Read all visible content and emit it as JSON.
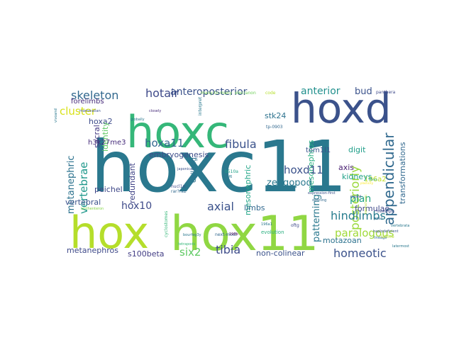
{
  "words": [
    {
      "text": "hoxc11",
      "color": "#2a788e"
    },
    {
      "text": "hoxc",
      "color": "#35b779"
    },
    {
      "text": "hoxd",
      "color": "#3b528b"
    },
    {
      "text": "hox",
      "color": "#b5de2b"
    },
    {
      "text": "hox11",
      "color": "#90d743"
    },
    {
      "text": "appendicular",
      "color": "#30698e"
    },
    {
      "text": "posteriorly",
      "color": "#9bd93c"
    },
    {
      "text": "skeleton",
      "color": "#31688e"
    },
    {
      "text": "hotair",
      "color": "#3e4989"
    },
    {
      "text": "anteroposterior",
      "color": "#3b528b"
    },
    {
      "text": "anterior",
      "color": "#21908d"
    },
    {
      "text": "bud",
      "color": "#3b528b"
    },
    {
      "text": "cluster",
      "color": "#d8e219"
    },
    {
      "text": "forelimbs",
      "color": "#472c7a"
    },
    {
      "text": "metanephric",
      "color": "#2c728e"
    },
    {
      "text": "vertebrae",
      "color": "#1f988b"
    },
    {
      "text": "hoxa2",
      "color": "#3e4c8a"
    },
    {
      "text": "sacral",
      "color": "#443983"
    },
    {
      "text": "identity",
      "color": "#5ec962"
    },
    {
      "text": "h3k27me3",
      "color": "#472d7b"
    },
    {
      "text": "hoxa11",
      "color": "#31688e"
    },
    {
      "text": "embryogenesis",
      "color": "#3e4c8a"
    },
    {
      "text": "fibula",
      "color": "#3b528b"
    },
    {
      "text": "stk24",
      "color": "#2c728e"
    },
    {
      "text": "mesonephros",
      "color": "#29af7f"
    },
    {
      "text": "tom1l1",
      "color": "#3b528b"
    },
    {
      "text": "digit",
      "color": "#1f9e89"
    },
    {
      "text": "transformations",
      "color": "#31688e"
    },
    {
      "text": "peichel",
      "color": "#3f4788"
    },
    {
      "text": "redundant",
      "color": "#414487"
    },
    {
      "text": "calledg",
      "color": "#2d708e"
    },
    {
      "text": "hoxd11",
      "color": "#3b528b"
    },
    {
      "text": "zeugopod",
      "color": "#2a788e"
    },
    {
      "text": "mesonephric",
      "color": "#20a486"
    },
    {
      "text": "196a2",
      "color": "#bddf26"
    },
    {
      "text": "axis",
      "color": "#481f70"
    },
    {
      "text": "kidneys",
      "color": "#1fa188"
    },
    {
      "text": "hox10",
      "color": "#3e4a89"
    },
    {
      "text": "axial",
      "color": "#3b528b"
    },
    {
      "text": "limbs",
      "color": "#31688e"
    },
    {
      "text": "plan",
      "color": "#1fa188"
    },
    {
      "text": "patterning",
      "color": "#2a788e"
    },
    {
      "text": "hindlimbs",
      "color": "#287d8e"
    },
    {
      "text": "paralogous",
      "color": "#a0da39"
    },
    {
      "text": "formulae",
      "color": "#3e4989"
    },
    {
      "text": "motazoan",
      "color": "#2c728e"
    },
    {
      "text": "vertebral",
      "color": "#3b528b"
    },
    {
      "text": "six2",
      "color": "#5ec962"
    },
    {
      "text": "tibia",
      "color": "#3e4c8a"
    },
    {
      "text": "homeotic",
      "color": "#3b528b"
    },
    {
      "text": "metanephros",
      "color": "#3e4989"
    },
    {
      "text": "s100beta",
      "color": "#433e85"
    },
    {
      "text": "non-colinear",
      "color": "#3b528b"
    },
    {
      "text": "evolution",
      "color": "#29af7f"
    },
    {
      "text": "oftg",
      "color": "#3e4989"
    },
    {
      "text": "next-most",
      "color": "#31688e"
    },
    {
      "text": "cyclostomes",
      "color": "#35b779"
    },
    {
      "text": "many-to-many",
      "color": "#7ad151"
    },
    {
      "text": "elecranon",
      "color": "#6ece58"
    },
    {
      "text": "code",
      "color": "#b5de2b"
    },
    {
      "text": "tp-0903",
      "color": "#31688e"
    },
    {
      "text": "196b",
      "color": "#440154"
    },
    {
      "text": "196a1",
      "color": "#2a788e"
    },
    {
      "text": "rar?ra2",
      "color": "#31688e"
    },
    {
      "text": "nucl1n",
      "color": "#3e4c8a"
    },
    {
      "text": "lanthenteron",
      "color": "#86d549"
    },
    {
      "text": "interpret",
      "color": "#2a788e"
    },
    {
      "text": "vivoand",
      "color": "#2a788e"
    },
    {
      "text": "mammalian",
      "color": "#3b528b"
    },
    {
      "text": "heterochronic",
      "color": "#b5de2b"
    },
    {
      "text": "panthera",
      "color": "#3e4989"
    },
    {
      "text": "plasticity",
      "color": "#fde725"
    },
    {
      "text": "treatingtg",
      "color": "#3e4989"
    },
    {
      "text": "posed",
      "color": "#3e4c8a"
    },
    {
      "text": "pitx1",
      "color": "#31688e"
    },
    {
      "text": "vertebrata",
      "color": "#2a788e"
    },
    {
      "text": "haplodeficient",
      "color": "#3b528b"
    },
    {
      "text": "lineage",
      "color": "#31688e"
    },
    {
      "text": "lattice",
      "color": "#b5de2b"
    },
    {
      "text": "globally",
      "color": "#2a788e"
    },
    {
      "text": "closely",
      "color": "#472c7a"
    },
    {
      "text": "expression-first",
      "color": "#3b528b"
    },
    {
      "text": "defining",
      "color": "#31688e"
    },
    {
      "text": "flanks",
      "color": "#1fa188"
    },
    {
      "text": "b510a",
      "color": "#1fa188"
    },
    {
      "text": "gdf6",
      "color": "#2a788e"
    },
    {
      "text": "japonica",
      "color": "#3b528b"
    },
    {
      "text": "bourfeg3y",
      "color": "#2a788e"
    },
    {
      "text": "tetrapods",
      "color": "#35b779"
    },
    {
      "text": "latermost",
      "color": "#2a788e"
    }
  ]
}
